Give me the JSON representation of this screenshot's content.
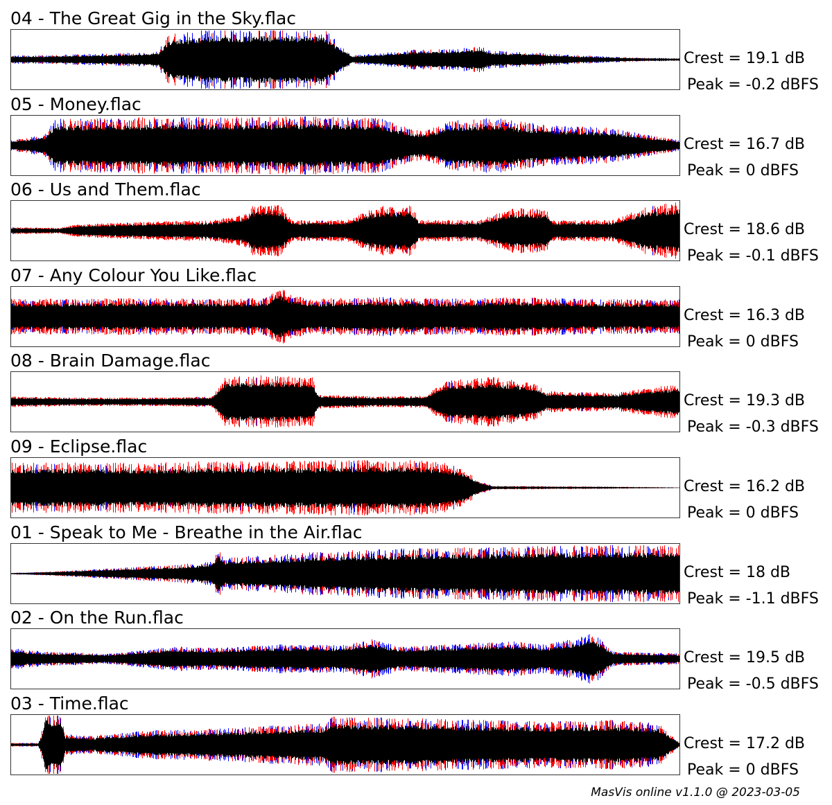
{
  "chart_data": [
    {
      "type": "area",
      "title": "04 - The Great Gig in the Sky.flac",
      "crest": "Crest = 19.1 dB",
      "peak": "Peak = -0.2 dBFS",
      "envelope": [
        [
          0,
          0.12
        ],
        [
          0.05,
          0.12
        ],
        [
          0.1,
          0.15
        ],
        [
          0.2,
          0.2
        ],
        [
          0.22,
          0.25
        ],
        [
          0.235,
          0.7
        ],
        [
          0.3,
          0.88
        ],
        [
          0.4,
          0.9
        ],
        [
          0.47,
          0.85
        ],
        [
          0.49,
          0.45
        ],
        [
          0.51,
          0.12
        ],
        [
          0.55,
          0.18
        ],
        [
          0.6,
          0.28
        ],
        [
          0.65,
          0.3
        ],
        [
          0.7,
          0.38
        ],
        [
          0.72,
          0.25
        ],
        [
          0.8,
          0.18
        ],
        [
          0.85,
          0.12
        ],
        [
          0.9,
          0.08
        ],
        [
          0.95,
          0.05
        ],
        [
          1,
          0.04
        ]
      ],
      "redmix": 0.15,
      "bluemix": 0.3
    },
    {
      "type": "area",
      "title": "05 - Money.flac",
      "crest": "Crest = 16.7 dB",
      "peak": "Peak = 0 dBFS",
      "envelope": [
        [
          0,
          0.15
        ],
        [
          0.05,
          0.3
        ],
        [
          0.065,
          0.75
        ],
        [
          0.15,
          0.78
        ],
        [
          0.25,
          0.8
        ],
        [
          0.35,
          0.8
        ],
        [
          0.45,
          0.82
        ],
        [
          0.5,
          0.8
        ],
        [
          0.55,
          0.78
        ],
        [
          0.6,
          0.45
        ],
        [
          0.62,
          0.42
        ],
        [
          0.66,
          0.7
        ],
        [
          0.72,
          0.78
        ],
        [
          0.77,
          0.65
        ],
        [
          0.82,
          0.55
        ],
        [
          0.9,
          0.5
        ],
        [
          0.95,
          0.3
        ],
        [
          1,
          0.15
        ]
      ],
      "redmix": 0.4,
      "bluemix": 0.3
    },
    {
      "type": "area",
      "title": "06 - Us and Them.flac",
      "crest": "Crest = 18.6 dB",
      "peak": "Peak = -0.1 dBFS",
      "envelope": [
        [
          0,
          0.1
        ],
        [
          0.07,
          0.08
        ],
        [
          0.1,
          0.18
        ],
        [
          0.2,
          0.25
        ],
        [
          0.3,
          0.3
        ],
        [
          0.35,
          0.45
        ],
        [
          0.36,
          0.7
        ],
        [
          0.4,
          0.75
        ],
        [
          0.42,
          0.3
        ],
        [
          0.5,
          0.3
        ],
        [
          0.55,
          0.7
        ],
        [
          0.6,
          0.7
        ],
        [
          0.61,
          0.3
        ],
        [
          0.7,
          0.3
        ],
        [
          0.75,
          0.65
        ],
        [
          0.8,
          0.6
        ],
        [
          0.81,
          0.3
        ],
        [
          0.9,
          0.3
        ],
        [
          0.95,
          0.7
        ],
        [
          1,
          0.8
        ]
      ],
      "redmix": 0.7,
      "bluemix": 0.05
    },
    {
      "type": "area",
      "title": "07 - Any Colour You Like.flac",
      "crest": "Crest = 16.3 dB",
      "peak": "Peak = 0 dBFS",
      "envelope": [
        [
          0,
          0.5
        ],
        [
          0.1,
          0.5
        ],
        [
          0.2,
          0.52
        ],
        [
          0.3,
          0.5
        ],
        [
          0.38,
          0.52
        ],
        [
          0.4,
          0.85
        ],
        [
          0.42,
          0.6
        ],
        [
          0.45,
          0.5
        ],
        [
          0.55,
          0.55
        ],
        [
          0.65,
          0.5
        ],
        [
          0.75,
          0.55
        ],
        [
          0.85,
          0.5
        ],
        [
          1,
          0.48
        ]
      ],
      "redmix": 0.6,
      "bluemix": 0.3
    },
    {
      "type": "area",
      "title": "08 - Brain Damage.flac",
      "crest": "Crest = 19.3 dB",
      "peak": "Peak = -0.3 dBFS",
      "envelope": [
        [
          0,
          0.15
        ],
        [
          0.1,
          0.12
        ],
        [
          0.2,
          0.12
        ],
        [
          0.3,
          0.15
        ],
        [
          0.32,
          0.7
        ],
        [
          0.38,
          0.75
        ],
        [
          0.45,
          0.7
        ],
        [
          0.46,
          0.2
        ],
        [
          0.55,
          0.15
        ],
        [
          0.62,
          0.18
        ],
        [
          0.65,
          0.6
        ],
        [
          0.72,
          0.7
        ],
        [
          0.78,
          0.55
        ],
        [
          0.8,
          0.3
        ],
        [
          0.9,
          0.25
        ],
        [
          1,
          0.5
        ]
      ],
      "redmix": 0.6,
      "bluemix": 0.05
    },
    {
      "type": "area",
      "title": "09 - Eclipse.flac",
      "crest": "Crest = 16.2 dB",
      "peak": "Peak = 0 dBFS",
      "envelope": [
        [
          0,
          0.7
        ],
        [
          0.1,
          0.72
        ],
        [
          0.2,
          0.7
        ],
        [
          0.3,
          0.75
        ],
        [
          0.4,
          0.75
        ],
        [
          0.5,
          0.78
        ],
        [
          0.6,
          0.78
        ],
        [
          0.65,
          0.7
        ],
        [
          0.68,
          0.5
        ],
        [
          0.7,
          0.2
        ],
        [
          0.72,
          0.05
        ],
        [
          0.9,
          0.03
        ],
        [
          1,
          0.01
        ]
      ],
      "redmix": 0.5,
      "bluemix": 0.05
    },
    {
      "type": "area",
      "title": "01 - Speak to Me - Breathe in the Air.flac",
      "crest": "Crest = 18 dB",
      "peak": "Peak = -1.1 dBFS",
      "envelope": [
        [
          0,
          0.02
        ],
        [
          0.05,
          0.05
        ],
        [
          0.15,
          0.15
        ],
        [
          0.25,
          0.25
        ],
        [
          0.3,
          0.35
        ],
        [
          0.31,
          0.7
        ],
        [
          0.32,
          0.45
        ],
        [
          0.4,
          0.55
        ],
        [
          0.5,
          0.65
        ],
        [
          0.6,
          0.72
        ],
        [
          0.7,
          0.75
        ],
        [
          0.8,
          0.78
        ],
        [
          0.9,
          0.8
        ],
        [
          1,
          0.8
        ]
      ],
      "redmix": 0.3,
      "bluemix": 0.3
    },
    {
      "type": "area",
      "title": "02 - On the Run.flac",
      "crest": "Crest = 19.5 dB",
      "peak": "Peak = -0.5 dBFS",
      "envelope": [
        [
          0,
          0.3
        ],
        [
          0.05,
          0.2
        ],
        [
          0.15,
          0.15
        ],
        [
          0.25,
          0.35
        ],
        [
          0.3,
          0.3
        ],
        [
          0.4,
          0.4
        ],
        [
          0.5,
          0.4
        ],
        [
          0.54,
          0.55
        ],
        [
          0.58,
          0.35
        ],
        [
          0.65,
          0.4
        ],
        [
          0.75,
          0.5
        ],
        [
          0.8,
          0.4
        ],
        [
          0.85,
          0.6
        ],
        [
          0.87,
          0.75
        ],
        [
          0.9,
          0.2
        ],
        [
          1,
          0.15
        ]
      ],
      "redmix": 0.3,
      "bluemix": 0.45
    },
    {
      "type": "area",
      "title": "03 - Time.flac",
      "crest": "Crest = 17.2 dB",
      "peak": "Peak = 0 dBFS",
      "envelope": [
        [
          0,
          0.05
        ],
        [
          0.04,
          0.05
        ],
        [
          0.045,
          0.3
        ],
        [
          0.05,
          0.95
        ],
        [
          0.075,
          0.9
        ],
        [
          0.08,
          0.3
        ],
        [
          0.12,
          0.25
        ],
        [
          0.2,
          0.4
        ],
        [
          0.3,
          0.45
        ],
        [
          0.4,
          0.55
        ],
        [
          0.47,
          0.6
        ],
        [
          0.48,
          0.8
        ],
        [
          0.6,
          0.75
        ],
        [
          0.7,
          0.7
        ],
        [
          0.8,
          0.65
        ],
        [
          0.9,
          0.7
        ],
        [
          0.97,
          0.6
        ],
        [
          1,
          0.05
        ]
      ],
      "redmix": 0.4,
      "bluemix": 0.3
    }
  ],
  "footer": "MasVis online v1.1.0 @ 2023-03-05",
  "colors": {
    "left": "#000000",
    "red": "#ff0000",
    "blue": "#0000ff"
  }
}
